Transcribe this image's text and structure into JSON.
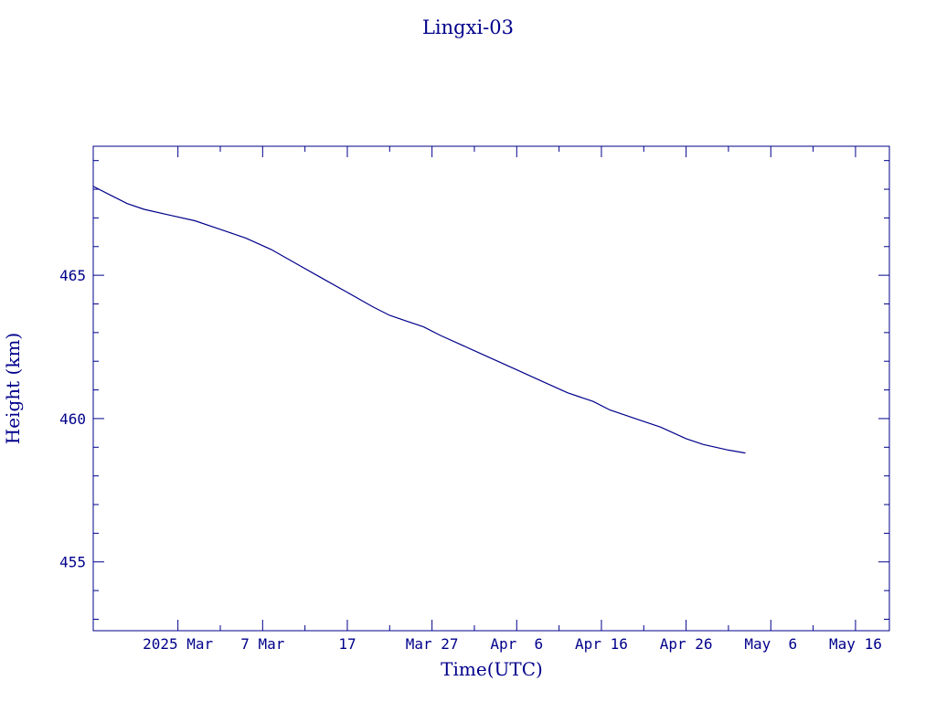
{
  "chart_data": {
    "type": "line",
    "title": "Lingxi-03",
    "xlabel": "Time(UTC)",
    "ylabel": "Height (km)",
    "x_scale": "date",
    "xlim": [
      "2025-02-15",
      "2025-05-20"
    ],
    "ylim": [
      452.6,
      469.5
    ],
    "x_ticks": [
      {
        "date": "2025-02-25",
        "label": "2025 Mar"
      },
      {
        "date": "2025-03-07",
        "label": "7 Mar"
      },
      {
        "date": "2025-03-17",
        "label": "17"
      },
      {
        "date": "2025-03-27",
        "label": "Mar 27"
      },
      {
        "date": "2025-04-06",
        "label": "Apr  6"
      },
      {
        "date": "2025-04-16",
        "label": "Apr 16"
      },
      {
        "date": "2025-04-26",
        "label": "Apr 26"
      },
      {
        "date": "2025-05-06",
        "label": "May  6"
      },
      {
        "date": "2025-05-16",
        "label": "May 16"
      }
    ],
    "x_minor_ticks": [
      "2025-03-02",
      "2025-03-12",
      "2025-03-22",
      "2025-04-01",
      "2025-04-11",
      "2025-04-21",
      "2025-05-01",
      "2025-05-11"
    ],
    "y_ticks": [
      455,
      460,
      465
    ],
    "y_minor_step": 1,
    "grid": false,
    "series": [
      {
        "color": "#00008b",
        "x": [
          "2025-02-15",
          "2025-02-17",
          "2025-02-19",
          "2025-02-21",
          "2025-02-24",
          "2025-02-27",
          "2025-03-02",
          "2025-03-05",
          "2025-03-08",
          "2025-03-11",
          "2025-03-14",
          "2025-03-17",
          "2025-03-20",
          "2025-03-22",
          "2025-03-24",
          "2025-03-26",
          "2025-03-28",
          "2025-03-31",
          "2025-04-03",
          "2025-04-06",
          "2025-04-09",
          "2025-04-12",
          "2025-04-15",
          "2025-04-17",
          "2025-04-20",
          "2025-04-23",
          "2025-04-26",
          "2025-04-28",
          "2025-05-01",
          "2025-05-03"
        ],
        "values": [
          468.1,
          467.8,
          467.5,
          467.3,
          467.1,
          466.9,
          466.6,
          466.3,
          465.9,
          465.4,
          464.9,
          464.4,
          463.9,
          463.6,
          463.4,
          463.2,
          462.9,
          462.5,
          462.1,
          461.7,
          461.3,
          460.9,
          460.6,
          460.3,
          460.0,
          459.7,
          459.3,
          459.1,
          458.9,
          458.8
        ]
      }
    ]
  }
}
